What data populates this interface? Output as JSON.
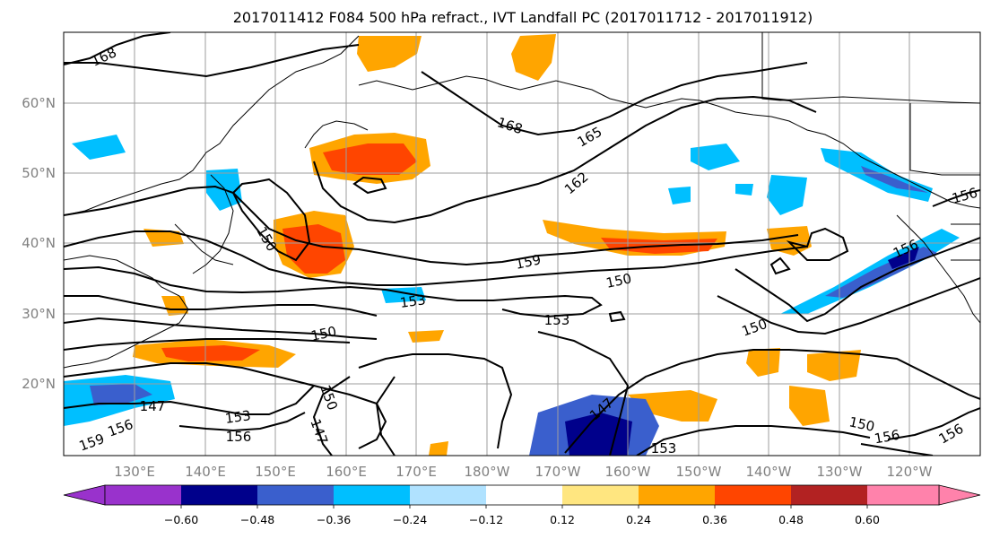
{
  "title": "2017011412 F084 500 hPa refract., IVT Landfall PC (2017011712 - 2017011912)",
  "map": {
    "lon_labels": [
      "130°E",
      "140°E",
      "150°E",
      "160°E",
      "170°E",
      "180°W",
      "170°W",
      "160°W",
      "150°W",
      "140°W",
      "130°W",
      "120°W"
    ],
    "lat_labels": [
      "20°N",
      "30°N",
      "40°N",
      "50°N",
      "60°N"
    ],
    "contour_labels": [
      "168",
      "168",
      "165",
      "162",
      "159",
      "150",
      "150",
      "153",
      "150",
      "153",
      "150",
      "147",
      "147",
      "150",
      "150",
      "156",
      "156",
      "153",
      "156",
      "153",
      "156",
      "147",
      "159",
      "156",
      "156"
    ],
    "fill_colors": {
      "neg_strong": "#00008b",
      "neg_mid": "#3a5fcd",
      "neg_light": "#00bfff",
      "neg_pale": "#add8ff",
      "pos_pale": "#ffe680",
      "pos_light": "#ffa500",
      "pos_mid": "#ff4500",
      "pos_strong": "#b22222"
    },
    "land_outline_color": "#000000",
    "contour_color": "#000000",
    "grid": true
  },
  "colorbar": {
    "ticks": [
      "−0.60",
      "−0.48",
      "−0.36",
      "−0.24",
      "−0.12",
      "0.12",
      "0.24",
      "0.36",
      "0.48",
      "0.60"
    ],
    "colors": [
      "#9932cc",
      "#00008b",
      "#3a5fcd",
      "#00bfff",
      "#b0e2ff",
      "#ffffff",
      "#ffe680",
      "#ffa500",
      "#ff4500",
      "#b22222",
      "#ff82ab"
    ]
  }
}
